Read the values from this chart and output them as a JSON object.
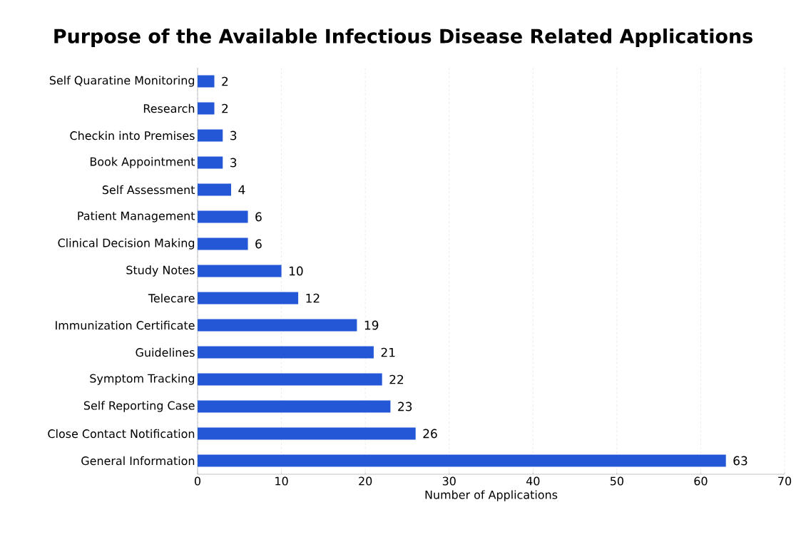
{
  "chart_data": {
    "type": "bar",
    "orientation": "horizontal",
    "title": "Purpose of the Available Infectious Disease Related Applications",
    "xlabel": "Number of Applications",
    "categories": [
      "Self Quaratine Monitoring",
      "Research",
      "Checkin into Premises",
      "Book Appointment",
      "Self Assessment",
      "Patient Management",
      "Clinical Decision Making",
      "Study Notes",
      "Telecare",
      "Immunization Certificate",
      "Guidelines",
      "Symptom Tracking",
      "Self Reporting Case",
      "Close Contact Notification",
      "General Information"
    ],
    "values": [
      2,
      2,
      3,
      3,
      4,
      6,
      6,
      10,
      12,
      19,
      21,
      22,
      23,
      26,
      63
    ],
    "color": "#2457d6",
    "data_labels": true,
    "xlim": [
      0,
      70
    ],
    "xticks": [
      0,
      10,
      20,
      30,
      40,
      50,
      60,
      70
    ],
    "grid": "x"
  }
}
